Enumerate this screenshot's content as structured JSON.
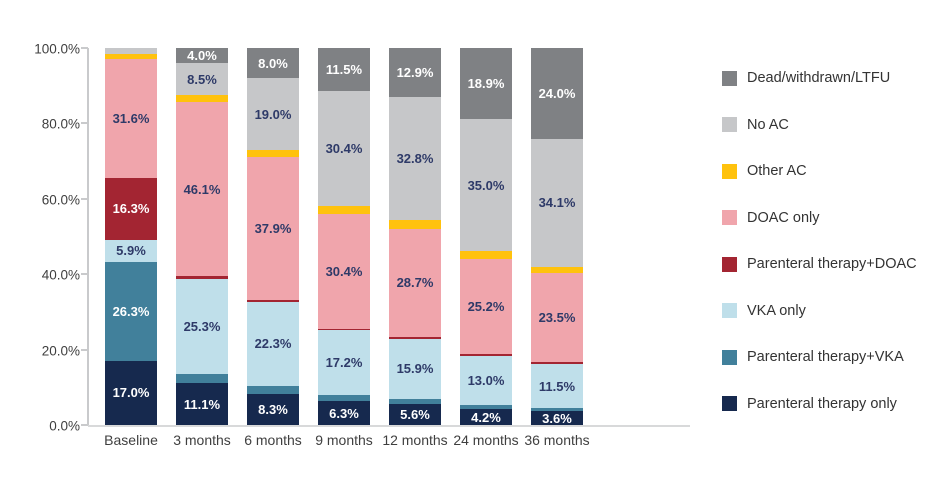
{
  "chart_data": {
    "type": "bar",
    "stacked": true,
    "title": "",
    "xlabel": "",
    "ylabel": "",
    "ylim": [
      0,
      100
    ],
    "grid": false,
    "legend_position": "right",
    "label_threshold": 3.5,
    "categories": [
      "Baseline",
      "3 months",
      "6 months",
      "9 months",
      "12 months",
      "24 months",
      "36 months"
    ],
    "y_axis_ticks": [
      "0.0%",
      "20.0%",
      "40.0%",
      "60.0%",
      "80.0%",
      "100.0%"
    ],
    "series_bottom_to_top": [
      {
        "name": "Parenteral therapy only",
        "color": "#16294e",
        "label_color": "#ffffff",
        "values": [
          17.0,
          11.1,
          8.3,
          6.3,
          5.6,
          4.2,
          3.6
        ]
      },
      {
        "name": "Parenteral therapy+VKA",
        "color": "#41809b",
        "label_color": "#ffffff",
        "values": [
          26.3,
          2.4,
          2.1,
          1.7,
          1.4,
          1.2,
          1.0
        ]
      },
      {
        "name": "VKA only",
        "color": "#bfdfea",
        "label_color": "#2e3a68",
        "values": [
          5.9,
          25.3,
          22.3,
          17.2,
          15.9,
          13.0,
          11.5
        ]
      },
      {
        "name": "Parenteral therapy+DOAC",
        "color": "#a32532",
        "label_color": "#ffffff",
        "values": [
          16.3,
          0.7,
          0.6,
          0.4,
          0.5,
          0.5,
          0.6
        ]
      },
      {
        "name": "DOAC only",
        "color": "#f0a5ac",
        "label_color": "#2e3a68",
        "values": [
          31.6,
          46.1,
          37.9,
          30.4,
          28.7,
          25.2,
          23.5
        ]
      },
      {
        "name": "Other AC",
        "color": "#ffc20d",
        "label_color": "#2e3a68",
        "values": [
          1.2,
          1.9,
          1.8,
          2.1,
          2.2,
          2.0,
          1.7
        ]
      },
      {
        "name": "No AC",
        "color": "#c6c7c9",
        "label_color": "#2e3a68",
        "values": [
          1.7,
          8.5,
          19.0,
          30.4,
          32.8,
          35.0,
          34.1
        ]
      },
      {
        "name": "Dead/withdrawn/LTFU",
        "color": "#7f8184",
        "label_color": "#ffffff",
        "values": [
          0,
          4.0,
          8.0,
          11.5,
          12.9,
          18.9,
          24.0
        ]
      }
    ],
    "legend_top_to_bottom": [
      "Dead/withdrawn/LTFU",
      "No AC",
      "Other AC",
      "DOAC only",
      "Parenteral therapy+DOAC",
      "VKA only",
      "Parenteral therapy+VKA",
      "Parenteral therapy only"
    ]
  }
}
